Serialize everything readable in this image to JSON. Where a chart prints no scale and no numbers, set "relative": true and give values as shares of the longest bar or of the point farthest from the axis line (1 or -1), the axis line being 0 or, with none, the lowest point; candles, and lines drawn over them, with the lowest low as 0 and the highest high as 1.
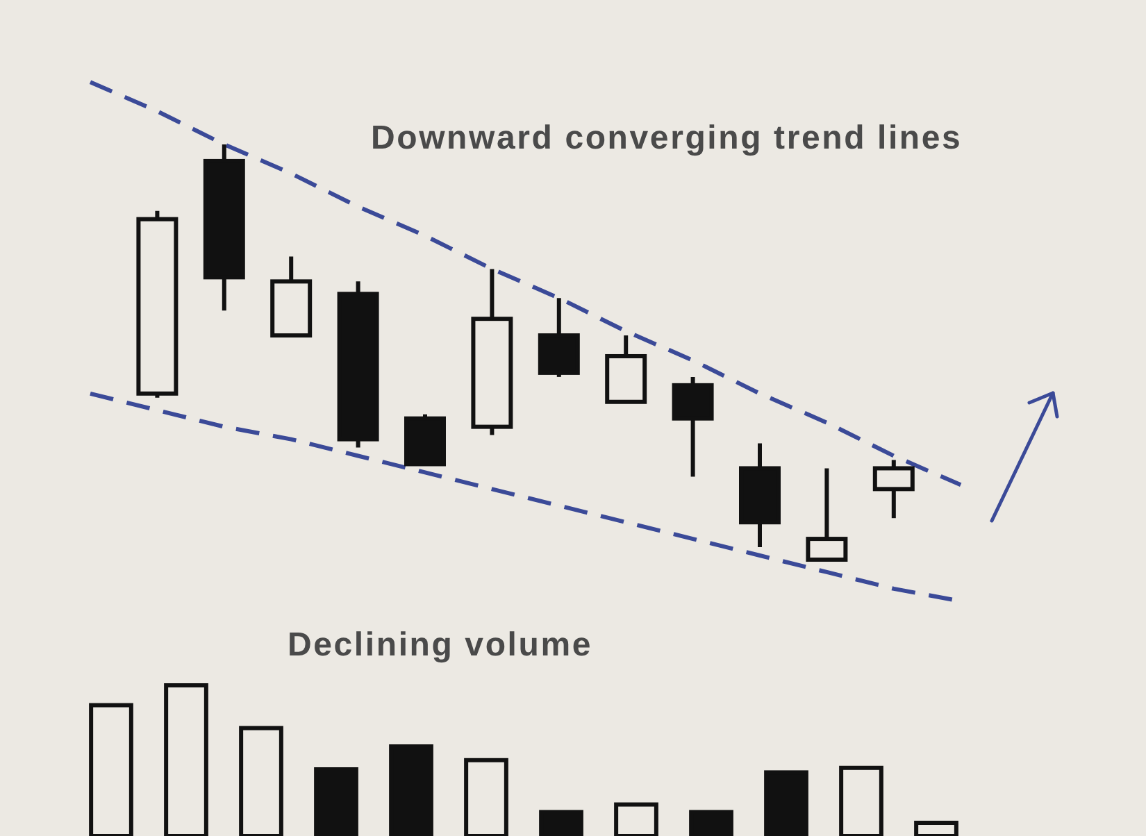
{
  "chart_data": [
    {
      "type": "candlestick",
      "title": "Downward converging trend lines",
      "relative": true,
      "categories": [
        null,
        null,
        null,
        null,
        null,
        null,
        null,
        null,
        null,
        null,
        null,
        null,
        null,
        null
      ],
      "ohlc": [
        null,
        [
          0.4,
          0.84,
          0.39,
          0.82
        ],
        [
          0.96,
          1,
          0.6,
          0.68
        ],
        [
          0.54,
          0.73,
          0.54,
          0.67
        ],
        [
          0.64,
          0.67,
          0.27,
          0.29
        ],
        [
          0.34,
          0.35,
          0.23,
          0.23
        ],
        [
          0.32,
          0.7,
          0.3,
          0.58
        ],
        [
          0.54,
          0.63,
          0.44,
          0.45
        ],
        [
          0.38,
          0.54,
          0.38,
          0.49
        ],
        [
          0.42,
          0.44,
          0.2,
          0.34
        ],
        [
          0.22,
          0.28,
          0.03,
          0.09
        ],
        [
          0,
          0.22,
          0,
          0.05
        ],
        [
          0.17,
          0.24,
          0.1,
          0.22
        ],
        null
      ],
      "series": [
        {
          "type": "line",
          "values": [
            1.15,
            1.08,
            1.0,
            0.93,
            0.85,
            0.78,
            0.7,
            0.63,
            0.55,
            0.48,
            0.4,
            0.33,
            0.25,
            0.18
          ],
          "color": "#3b4a98",
          "line_style": "dashed"
        },
        {
          "type": "line",
          "values": [
            0.4,
            0.36,
            0.32,
            0.29,
            0.25,
            0.21,
            0.17,
            0.13,
            0.09,
            0.05,
            0.01,
            -0.03,
            -0.07,
            -0.1
          ],
          "color": "#3b4a98",
          "line_style": "dashed"
        }
      ]
    },
    {
      "type": "bar",
      "title": "Declining volume",
      "relative": true,
      "categories": [
        null,
        null,
        null,
        null,
        null,
        null,
        null,
        null,
        null,
        null,
        null,
        null
      ],
      "values": [
        0.87,
        1,
        0.72,
        0.45,
        0.6,
        0.51,
        0.17,
        0.22,
        0.17,
        0.43,
        0.46,
        0.1
      ],
      "colors": [
        "#ece9e3",
        "#ece9e3",
        "#ece9e3",
        "#111111",
        "#111111",
        "#ece9e3",
        "#111111",
        "#ece9e3",
        "#111111",
        "#111111",
        "#ece9e3",
        "#ece9e3"
      ]
    }
  ]
}
